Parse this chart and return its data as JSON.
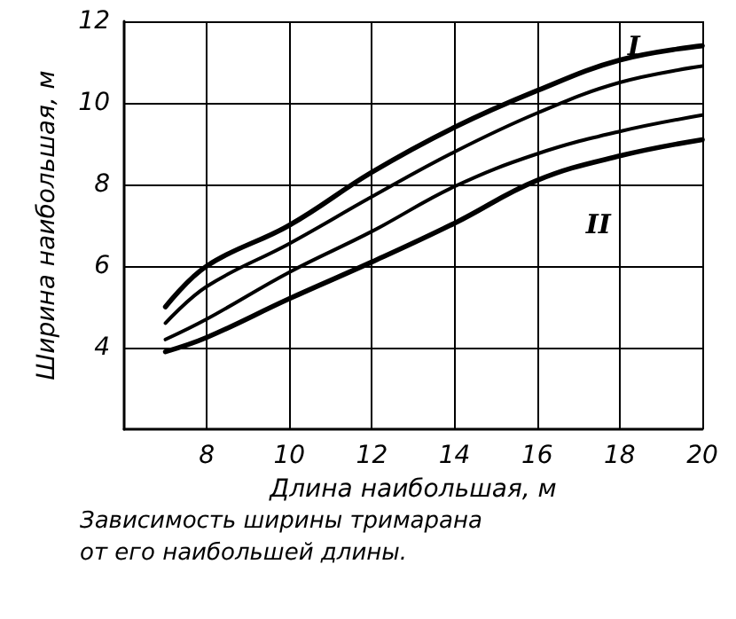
{
  "chart_data": {
    "type": "line",
    "title": "Зависимость ширины тримарана от его наибольшей длины.",
    "xlabel": "Длина наибольшая, м",
    "ylabel": "Ширина наибольшая, м",
    "x": [
      7,
      8,
      10,
      12,
      14,
      16,
      18,
      20
    ],
    "series": [
      {
        "color": "#000000",
        "values": [
          5.0,
          6.0,
          7.0,
          8.3,
          9.4,
          10.3,
          11.05,
          11.4
        ]
      },
      {
        "name": "I",
        "color": "#000000",
        "values": [
          4.6,
          5.5,
          6.55,
          7.7,
          8.8,
          9.75,
          10.5,
          10.9
        ]
      },
      {
        "name": "II",
        "color": "#000000",
        "values": [
          4.2,
          4.7,
          5.85,
          6.85,
          7.95,
          8.75,
          9.3,
          9.7
        ]
      },
      {
        "color": "#000000",
        "values": [
          3.9,
          4.25,
          5.2,
          6.1,
          7.05,
          8.1,
          8.7,
          9.1
        ]
      }
    ],
    "xlim": [
      6,
      20
    ],
    "xticks": [
      8,
      10,
      12,
      14,
      16,
      18,
      20
    ],
    "ylim": [
      2,
      12
    ],
    "yticks": [
      4,
      6,
      8,
      10,
      12
    ],
    "grid": true,
    "legend": false,
    "marker": "none",
    "line_style": "solid"
  }
}
